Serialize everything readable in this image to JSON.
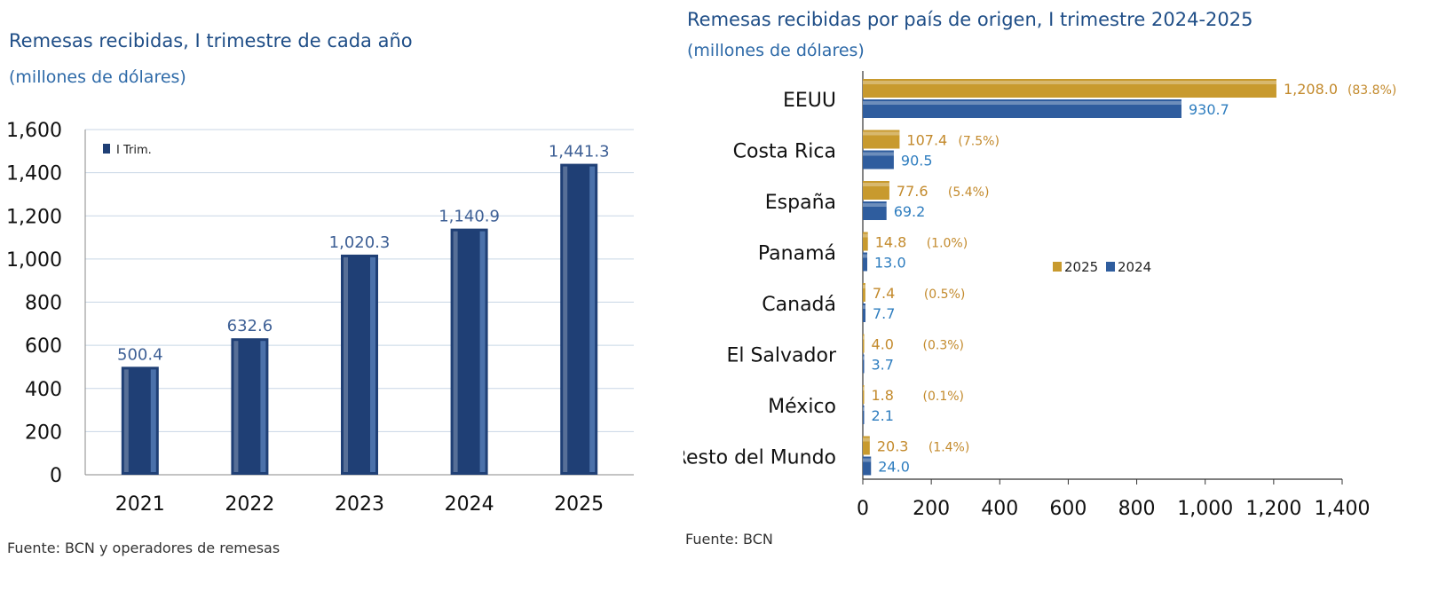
{
  "colors": {
    "title": "#1f4e87",
    "bar_2024": "#2f5d9e",
    "bar_2025": "#c89a2e",
    "label_2024": "#2e7dbf",
    "label_2025": "#c38a2c",
    "left_bar": "#1f3f75",
    "left_value": "#3d5f95",
    "grid": "#c8d6e5"
  },
  "left": {
    "title": "Remesas recibidas, I trimestre de cada año",
    "subtitle": "(millones de dólares)",
    "source": "Fuente: BCN y operadores de remesas"
  },
  "right": {
    "title": "Remesas recibidas por país de origen, I trimestre 2024-2025",
    "subtitle": "(millones de dólares)",
    "source": "Fuente: BCN"
  },
  "chart_data": [
    {
      "type": "bar",
      "categories": [
        "2021",
        "2022",
        "2023",
        "2024",
        "2025"
      ],
      "series": [
        {
          "name": "I Trim.",
          "values": [
            500.4,
            632.6,
            1020.3,
            1140.9,
            1441.3
          ]
        }
      ],
      "value_labels": [
        "500.4",
        "632.6",
        "1,020.3",
        "1,140.9",
        "1,441.3"
      ],
      "ylim": [
        0,
        1600
      ],
      "yticks": [
        "0",
        "200",
        "400",
        "600",
        "800",
        "1,000",
        "1,200",
        "1,400",
        "1,600"
      ],
      "grid": true,
      "legend": "top-left"
    },
    {
      "type": "bar",
      "orientation": "horizontal",
      "categories": [
        "EEUU",
        "Costa Rica",
        "España",
        "Panamá",
        "Canadá",
        "El Salvador",
        "México",
        "Resto del Mundo"
      ],
      "series": [
        {
          "name": "2025",
          "values": [
            1208.0,
            107.4,
            77.6,
            14.8,
            7.4,
            4.0,
            1.8,
            20.3
          ],
          "value_labels": [
            "1,208.0",
            "107.4",
            "77.6",
            "14.8",
            "7.4",
            "4.0",
            "1.8",
            "20.3"
          ],
          "share_labels": [
            "(83.8%)",
            "(7.5%)",
            "(5.4%)",
            "(1.0%)",
            "(0.5%)",
            "(0.3%)",
            "(0.1%)",
            "(1.4%)"
          ]
        },
        {
          "name": "2024",
          "values": [
            930.7,
            90.5,
            69.2,
            13.0,
            7.7,
            3.7,
            2.1,
            24.0
          ],
          "value_labels": [
            "930.7",
            "90.5",
            "69.2",
            "13.0",
            "7.7",
            "3.7",
            "2.1",
            "24.0"
          ]
        }
      ],
      "xlim": [
        0,
        1400
      ],
      "xticks": [
        "0",
        "200",
        "400",
        "600",
        "800",
        "1,000",
        "1,200",
        "1,400"
      ],
      "grid": false,
      "legend": "center"
    }
  ]
}
